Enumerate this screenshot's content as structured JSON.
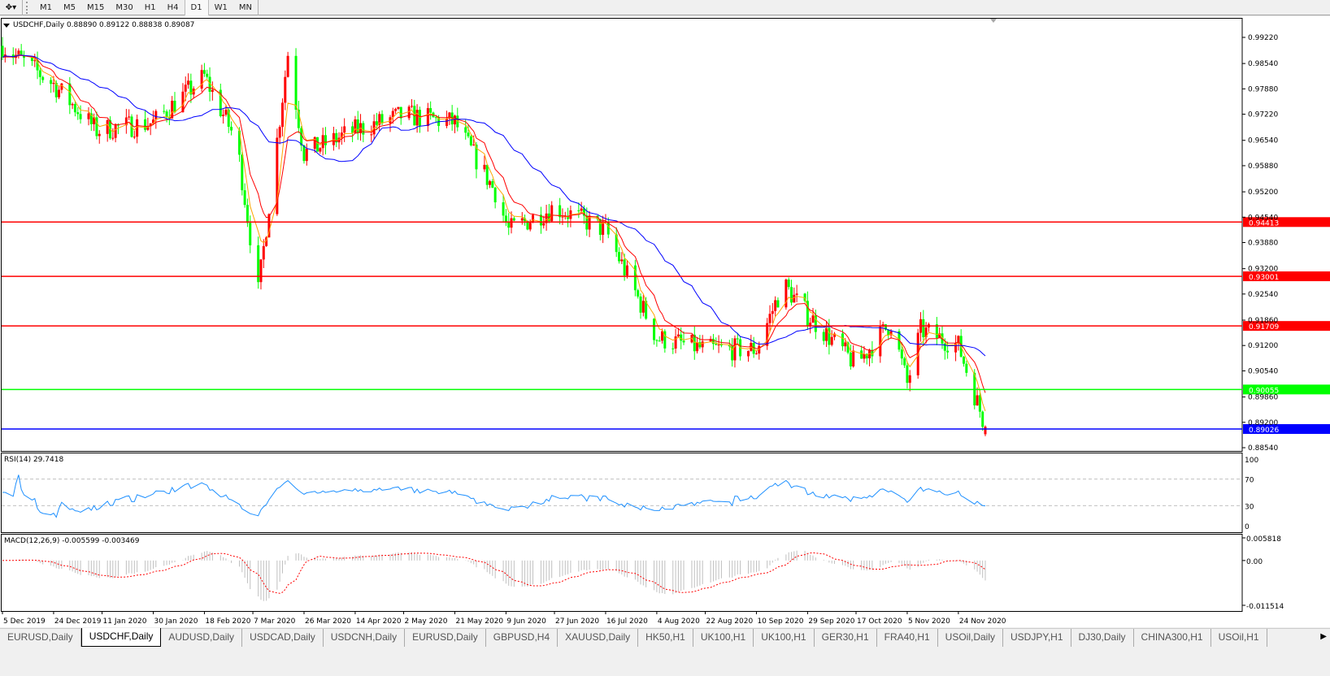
{
  "toolbar": {
    "tool_icon": "cursor-crosshair-icon",
    "timeframes": [
      "M1",
      "M5",
      "M15",
      "M30",
      "H1",
      "H4",
      "D1",
      "W1",
      "MN"
    ],
    "active_timeframe": "D1"
  },
  "chart": {
    "header": "USDCHF,Daily  0.88890 0.89122 0.88838 0.89087",
    "symbol": "USDCHF",
    "period": "Daily",
    "ohlc": {
      "open": 0.8889,
      "high": 0.89122,
      "low": 0.88838,
      "close": 0.89087
    },
    "colors": {
      "bull": "#ff0000",
      "bear": "#00ff00",
      "ma_fast": "#ffa500",
      "ma_mid": "#ff0000",
      "ma_slow": "#0000ff",
      "rsi": "#1e90ff",
      "macd_signal": "#ff0000",
      "macd_hist": "#c0c0c0"
    },
    "price_ticks": [
      "0.99220",
      "0.98540",
      "0.97880",
      "0.97220",
      "0.96540",
      "0.95880",
      "0.95200",
      "0.94540",
      "0.93880",
      "0.93200",
      "0.92540",
      "0.91860",
      "0.91200",
      "0.90540",
      "0.89860",
      "0.89200",
      "0.88540"
    ],
    "levels": [
      {
        "price": "0.94413",
        "color": "#ff0000"
      },
      {
        "price": "0.93001",
        "color": "#ff0000"
      },
      {
        "price": "0.91709",
        "color": "#ff0000"
      },
      {
        "price": "0.90055",
        "color": "#00ff00"
      },
      {
        "price": "0.89026",
        "color": "#0000ff"
      }
    ],
    "date_labels": [
      "5 Dec 2019",
      "24 Dec 2019",
      "11 Jan 2020",
      "30 Jan 2020",
      "18 Feb 2020",
      "7 Mar 2020",
      "26 Mar 2020",
      "14 Apr 2020",
      "2 May 2020",
      "21 May 2020",
      "9 Jun 2020",
      "27 Jun 2020",
      "16 Jul 2020",
      "4 Aug 2020",
      "22 Aug 2020",
      "10 Sep 2020",
      "29 Sep 2020",
      "17 Oct 2020",
      "5 Nov 2020",
      "24 Nov 2020"
    ]
  },
  "rsi": {
    "label": "RSI(14) 29.7418",
    "ticks": [
      "100",
      "70",
      "30",
      "0"
    ]
  },
  "macd": {
    "label": "MACD(12,26,9) -0.005599 -0.003469",
    "ticks": [
      "0.005818",
      "0.00",
      "-0.011514"
    ]
  },
  "chart_data": {
    "type": "candlestick",
    "title": "USDCHF,Daily",
    "ylim": [
      0.8854,
      0.9922
    ],
    "approx_close_path": [
      [
        "2019-12-05",
        0.99
      ],
      [
        "2019-12-24",
        0.98
      ],
      [
        "2020-01-09",
        0.968
      ],
      [
        "2020-01-30",
        0.97
      ],
      [
        "2020-02-18",
        0.982
      ],
      [
        "2020-03-01",
        0.965
      ],
      [
        "2020-03-09",
        0.926
      ],
      [
        "2020-03-20",
        0.988
      ],
      [
        "2020-03-26",
        0.962
      ],
      [
        "2020-04-14",
        0.968
      ],
      [
        "2020-05-02",
        0.972
      ],
      [
        "2020-05-21",
        0.97
      ],
      [
        "2020-06-05",
        0.952
      ],
      [
        "2020-06-10",
        0.942
      ],
      [
        "2020-06-27",
        0.948
      ],
      [
        "2020-07-16",
        0.942
      ],
      [
        "2020-08-04",
        0.914
      ],
      [
        "2020-08-22",
        0.911
      ],
      [
        "2020-09-10",
        0.911
      ],
      [
        "2020-09-20",
        0.928
      ],
      [
        "2020-09-29",
        0.92
      ],
      [
        "2020-10-17",
        0.907
      ],
      [
        "2020-10-30",
        0.918
      ],
      [
        "2020-11-05",
        0.902
      ],
      [
        "2020-11-10",
        0.916
      ],
      [
        "2020-11-24",
        0.912
      ],
      [
        "2020-12-04",
        0.8909
      ]
    ]
  },
  "tabs": [
    "EURUSD,Daily",
    "USDCHF,Daily",
    "AUDUSD,Daily",
    "USDCAD,Daily",
    "USDCNH,Daily",
    "EURUSD,Daily",
    "GBPUSD,H4",
    "XAUUSD,Daily",
    "HK50,H1",
    "UK100,H1",
    "UK100,H1",
    "GER30,H1",
    "FRA40,H1",
    "USOil,Daily",
    "USDJPY,H1",
    "DJ30,Daily",
    "CHINA300,H1",
    "USOil,H1"
  ],
  "active_tab": "USDCHF,Daily"
}
